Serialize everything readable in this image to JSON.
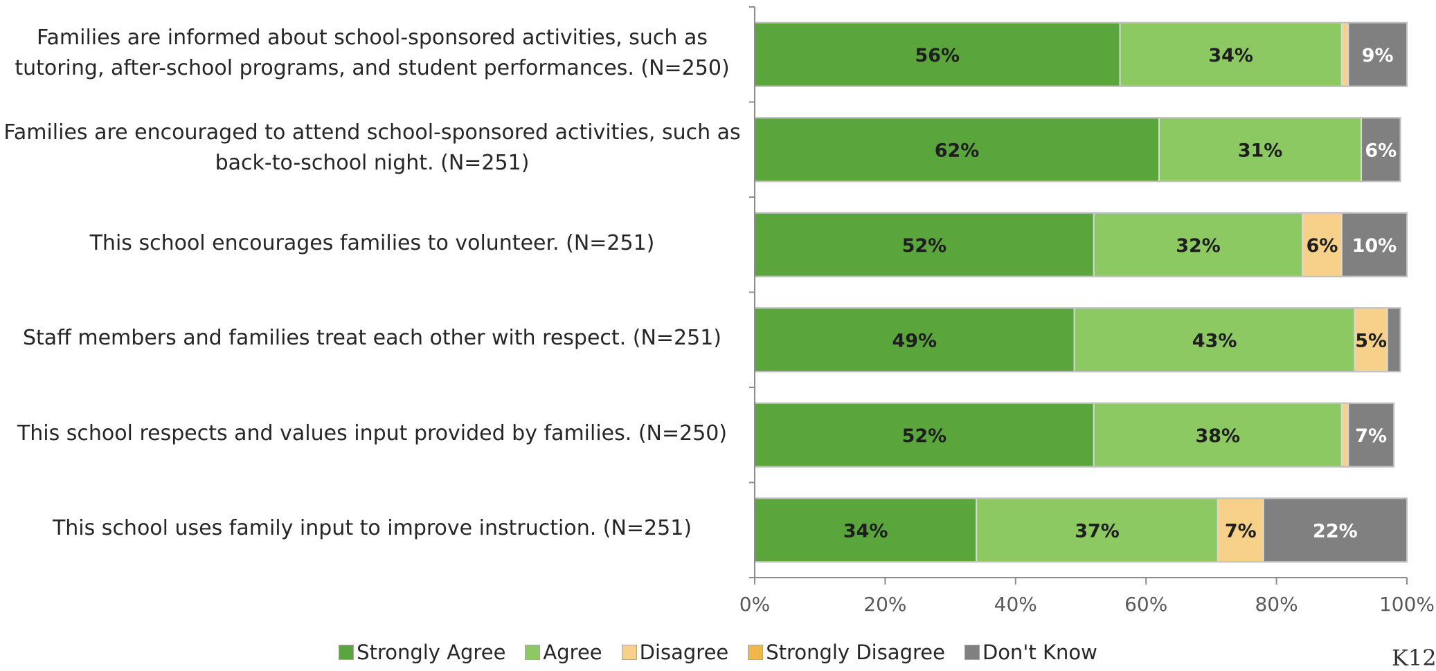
{
  "chart_data": {
    "type": "bar",
    "orientation": "horizontal",
    "stacked": true,
    "categories": [
      "Families are informed about school-sponsored activities, such as tutoring, after-school programs, and student performances. (N=250)",
      "Families are encouraged to attend school-sponsored activities, such as back-to-school night. (N=251)",
      "This school encourages families to volunteer. (N=251)",
      "Staff members and families treat each other with respect. (N=251)",
      "This school respects and values input provided by families. (N=250)",
      "This school uses family input to improve instruction. (N=251)"
    ],
    "category_lines": [
      [
        "Families are informed about school-sponsored activities, such as",
        "tutoring, after-school programs, and student performances. (N=250)"
      ],
      [
        "Families are encouraged to attend school-sponsored activities, such as",
        "back-to-school night. (N=251)"
      ],
      [
        "This school encourages families to volunteer. (N=251)"
      ],
      [
        "Staff members and families treat each other with respect. (N=251)"
      ],
      [
        "This school respects and values input provided by families. (N=250)"
      ],
      [
        "This school uses family input to improve instruction. (N=251)"
      ]
    ],
    "series": [
      {
        "name": "Strongly Agree",
        "color": "#5aa63c",
        "label_color": "#1e1e1e",
        "values": [
          56,
          62,
          52,
          49,
          52,
          34
        ],
        "labels": [
          "56%",
          "62%",
          "52%",
          "49%",
          "52%",
          "34%"
        ]
      },
      {
        "name": "Agree",
        "color": "#8cc963",
        "label_color": "#1e1e1e",
        "values": [
          34,
          31,
          32,
          43,
          38,
          37
        ],
        "labels": [
          "34%",
          "31%",
          "32%",
          "43%",
          "38%",
          "37%"
        ]
      },
      {
        "name": "Disagree",
        "color": "#f7d08a",
        "label_color": "#1e1e1e",
        "values": [
          1,
          0,
          6,
          5,
          1,
          7
        ],
        "labels": [
          "",
          "",
          "6%",
          "5%",
          "",
          "7%"
        ]
      },
      {
        "name": "Strongly Disagree",
        "color": "#f0b84a",
        "label_color": "#1e1e1e",
        "values": [
          0,
          0,
          0,
          0,
          0,
          0
        ],
        "labels": [
          "",
          "",
          "",
          "",
          "",
          ""
        ]
      },
      {
        "name": "Don't Know",
        "color": "#808080",
        "label_color": "#ffffff",
        "values": [
          9,
          6,
          10,
          2,
          7,
          22
        ],
        "labels": [
          "9%",
          "6%",
          "10%",
          "",
          "7%",
          "22%"
        ]
      }
    ],
    "xlim": [
      0,
      100
    ],
    "x_ticks": [
      "0%",
      "20%",
      "40%",
      "60%",
      "80%",
      "100%"
    ],
    "grid": false,
    "legend_position": "bottom",
    "xlabel": "",
    "ylabel": "",
    "title": ""
  },
  "watermark": "K12"
}
